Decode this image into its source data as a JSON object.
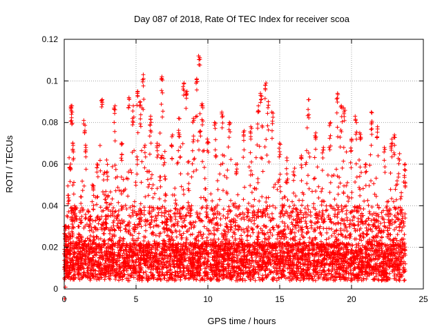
{
  "chart_data": {
    "type": "scatter",
    "title": "Day 087 of 2018, Rate Of TEC Index for receiver scoa",
    "xlabel": "GPS time / hours",
    "ylabel": "ROTI / TECUs",
    "xlim": [
      0,
      25
    ],
    "ylim": [
      0,
      0.12
    ],
    "x_ticks": [
      "0",
      "5",
      "10",
      "15",
      "20",
      "25"
    ],
    "y_ticks": [
      "0",
      "0.02",
      "0.04",
      "0.06",
      "0.08",
      "0.1",
      "0.12"
    ],
    "grid": true,
    "marker": "+",
    "color": "#ff0000",
    "series": [
      {
        "x_range": [
          0,
          23.75
        ],
        "points": [
          [
            0.05,
            0.01
          ],
          [
            0.1,
            0.03
          ],
          [
            0.2,
            0.02
          ],
          [
            0.3,
            0.045
          ],
          [
            0.4,
            0.06
          ],
          [
            0.5,
            0.088
          ],
          [
            0.55,
            0.085
          ],
          [
            0.6,
            0.07
          ],
          [
            0.75,
            0.04
          ],
          [
            1.0,
            0.025
          ],
          [
            1.4,
            0.081
          ],
          [
            1.5,
            0.068
          ],
          [
            2.0,
            0.05
          ],
          [
            2.3,
            0.06
          ],
          [
            2.6,
            0.091
          ],
          [
            3.0,
            0.062
          ],
          [
            3.5,
            0.088
          ],
          [
            4.0,
            0.07
          ],
          [
            4.5,
            0.092
          ],
          [
            4.8,
            0.088
          ],
          [
            5.1,
            0.095
          ],
          [
            5.3,
            0.09
          ],
          [
            5.5,
            0.103
          ],
          [
            6.0,
            0.083
          ],
          [
            6.5,
            0.07
          ],
          [
            6.8,
            0.102
          ],
          [
            7.5,
            0.074
          ],
          [
            8.0,
            0.082
          ],
          [
            8.3,
            0.099
          ],
          [
            8.5,
            0.095
          ],
          [
            9.0,
            0.082
          ],
          [
            9.2,
            0.101
          ],
          [
            9.4,
            0.112
          ],
          [
            9.6,
            0.089
          ],
          [
            10.0,
            0.072
          ],
          [
            10.5,
            0.08
          ],
          [
            11.0,
            0.085
          ],
          [
            11.5,
            0.08
          ],
          [
            12.0,
            0.06
          ],
          [
            12.5,
            0.076
          ],
          [
            13.0,
            0.078
          ],
          [
            13.5,
            0.088
          ],
          [
            13.7,
            0.094
          ],
          [
            14.0,
            0.099
          ],
          [
            14.2,
            0.09
          ],
          [
            14.5,
            0.085
          ],
          [
            15.0,
            0.07
          ],
          [
            15.5,
            0.063
          ],
          [
            16.0,
            0.058
          ],
          [
            16.5,
            0.064
          ],
          [
            17.0,
            0.091
          ],
          [
            17.5,
            0.075
          ],
          [
            18.0,
            0.068
          ],
          [
            18.5,
            0.08
          ],
          [
            19.0,
            0.094
          ],
          [
            19.3,
            0.088
          ],
          [
            19.5,
            0.087
          ],
          [
            20.0,
            0.072
          ],
          [
            20.3,
            0.083
          ],
          [
            20.6,
            0.075
          ],
          [
            21.0,
            0.06
          ],
          [
            21.4,
            0.085
          ],
          [
            21.8,
            0.078
          ],
          [
            22.3,
            0.068
          ],
          [
            22.8,
            0.072
          ],
          [
            23.0,
            0.074
          ],
          [
            23.3,
            0.065
          ],
          [
            23.7,
            0.06
          ]
        ],
        "typical_range": [
          0.005,
          0.05
        ]
      }
    ]
  }
}
